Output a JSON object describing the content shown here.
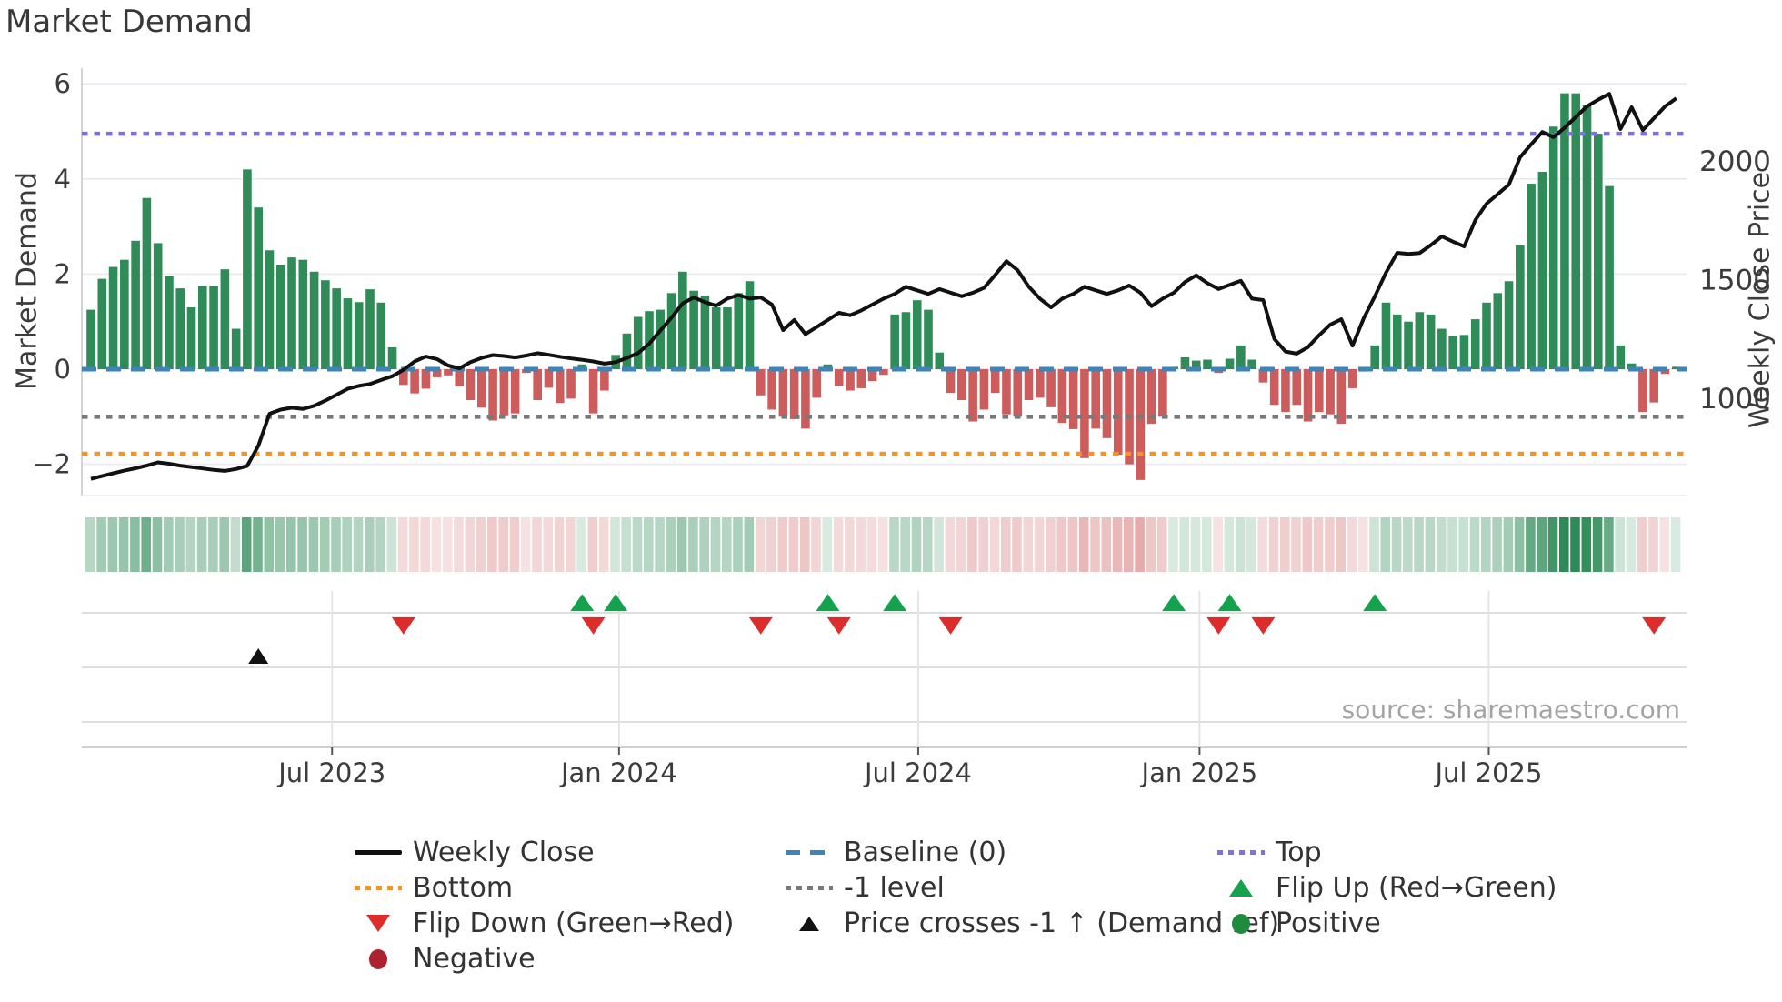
{
  "title": "Market Demand",
  "source": "source: sharemaestro.com",
  "left_axis": {
    "label": "Market Demand",
    "ticks": [
      {
        "label": "6",
        "value": 6
      },
      {
        "label": "4",
        "value": 4
      },
      {
        "label": "2",
        "value": 2
      },
      {
        "label": "0",
        "value": 0
      },
      {
        "label": "−2",
        "value": -2
      }
    ]
  },
  "right_axis": {
    "label": "Weekly Close Price",
    "ticks": [
      {
        "label": "2000",
        "value": 2000
      },
      {
        "label": "1500",
        "value": 1500
      },
      {
        "label": "1000",
        "value": 1000
      }
    ]
  },
  "x_axis": {
    "ticks": [
      {
        "label": "Jul 2023",
        "week": 21.6
      },
      {
        "label": "Jan 2024",
        "week": 47.3
      },
      {
        "label": "Jul 2024",
        "week": 74.1
      },
      {
        "label": "Jan 2025",
        "week": 99.3
      },
      {
        "label": "Jul 2025",
        "week": 125.2
      }
    ]
  },
  "colors": {
    "bar_positive": "#2f8b57",
    "bar_negative": "#cd5c5c",
    "price_line": "#111111",
    "baseline": "#3d85b8",
    "top_line": "#7f70e2",
    "bottom_line": "#f0942c",
    "minus_one_line": "#787878",
    "flip_up": "#15a24e",
    "flip_down": "#dd2c2c",
    "price_cross": "#111111",
    "positive_dot": "#1f8b3d",
    "negative_dot": "#ab2330",
    "grid": "#e9e9f2",
    "panel_grid": "#d9d9d9",
    "spine": "#c9c9c9",
    "tick_text": "#3c3c3c"
  },
  "legend": {
    "columns": [
      {
        "items": [
          {
            "label": "Weekly Close",
            "swatch": "line-black"
          },
          {
            "label": "Bottom",
            "swatch": "dotted-orange"
          },
          {
            "label": "Flip Down (Green→Red)",
            "swatch": "triangle-down-red"
          },
          {
            "label": "Negative",
            "swatch": "circle-darkred"
          }
        ]
      },
      {
        "items": [
          {
            "label": "Baseline (0)",
            "swatch": "dashed-blue"
          },
          {
            "label": "-1 level",
            "swatch": "dotted-gray"
          },
          {
            "label": "Price crosses -1 ↑ (Demand ref)",
            "swatch": "triangle-up-black"
          }
        ]
      },
      {
        "items": [
          {
            "label": "Top",
            "swatch": "dotted-purple"
          },
          {
            "label": "Flip Up (Red→Green)",
            "swatch": "triangle-up-green"
          },
          {
            "label": "Positive",
            "swatch": "circle-green"
          }
        ]
      }
    ]
  },
  "chart_data": {
    "type": "mixed",
    "subtypes": [
      "bar",
      "line",
      "heatmap",
      "event-markers"
    ],
    "x_unit": "week",
    "n_weeks": 143,
    "title": "Market Demand",
    "left_ylabel": "Market Demand",
    "right_ylabel": "Weekly Close Price",
    "left_ylim": [
      -2.68,
      6.37
    ],
    "right_axis_alignment": {
      "price_at_demand_zero": 1122.6,
      "price_per_demand_unit": 200.4
    },
    "reference_lines": {
      "baseline": 0,
      "minus_one": -1,
      "top": 4.95,
      "bottom": -1.78
    },
    "demand": [
      1.25,
      1.9,
      2.15,
      2.3,
      2.7,
      3.6,
      2.65,
      1.95,
      1.7,
      1.3,
      1.75,
      1.75,
      2.1,
      0.85,
      4.2,
      3.4,
      2.5,
      2.2,
      2.35,
      2.3,
      2.05,
      1.87,
      1.7,
      1.49,
      1.41,
      1.68,
      1.4,
      0.46,
      -0.33,
      -0.51,
      -0.41,
      -0.17,
      -0.13,
      -0.36,
      -0.65,
      -0.81,
      -1.08,
      -0.97,
      -0.93,
      -0.08,
      -0.65,
      -0.39,
      -0.71,
      -0.62,
      0.1,
      -0.93,
      -0.45,
      0.3,
      0.75,
      1.1,
      1.22,
      1.25,
      1.6,
      2.05,
      1.65,
      1.55,
      1.3,
      1.3,
      1.6,
      1.85,
      -0.55,
      -0.85,
      -1.0,
      -1.05,
      -1.25,
      -0.6,
      0.1,
      -0.35,
      -0.45,
      -0.4,
      -0.25,
      -0.12,
      1.15,
      1.2,
      1.45,
      1.25,
      0.35,
      -0.5,
      -0.65,
      -1.1,
      -0.85,
      -0.5,
      -0.95,
      -1.0,
      -0.65,
      -0.6,
      -0.8,
      -1.13,
      -1.26,
      -1.87,
      -1.25,
      -1.45,
      -1.8,
      -2.0,
      -2.33,
      -1.15,
      -1.0,
      0.05,
      0.25,
      0.18,
      0.2,
      -0.08,
      0.22,
      0.5,
      0.2,
      -0.28,
      -0.75,
      -0.9,
      -0.75,
      -1.1,
      -0.9,
      -0.95,
      -1.15,
      -0.4,
      -0.05,
      0.5,
      1.4,
      1.15,
      1.0,
      1.2,
      1.15,
      0.85,
      0.7,
      0.72,
      1.05,
      1.4,
      1.6,
      1.85,
      2.6,
      3.9,
      4.15,
      5.1,
      5.8,
      5.8,
      5.55,
      4.95,
      3.85,
      0.5,
      0.12,
      -0.9,
      -0.7,
      -0.1,
      0.05
    ],
    "weekly_close": [
      660,
      672,
      684,
      695,
      705,
      716,
      730,
      724,
      716,
      710,
      704,
      698,
      694,
      702,
      715,
      800,
      935,
      952,
      960,
      955,
      968,
      990,
      1015,
      1040,
      1052,
      1060,
      1077,
      1093,
      1120,
      1155,
      1176,
      1165,
      1138,
      1126,
      1152,
      1170,
      1182,
      1178,
      1172,
      1180,
      1190,
      1183,
      1175,
      1168,
      1162,
      1155,
      1146,
      1152,
      1170,
      1190,
      1230,
      1285,
      1340,
      1400,
      1425,
      1405,
      1390,
      1420,
      1435,
      1420,
      1425,
      1395,
      1287,
      1330,
      1270,
      1300,
      1330,
      1360,
      1350,
      1370,
      1395,
      1420,
      1440,
      1470,
      1455,
      1440,
      1460,
      1445,
      1430,
      1445,
      1465,
      1520,
      1578,
      1540,
      1470,
      1420,
      1383,
      1420,
      1440,
      1470,
      1455,
      1440,
      1455,
      1475,
      1445,
      1388,
      1420,
      1445,
      1490,
      1518,
      1485,
      1460,
      1478,
      1495,
      1420,
      1414,
      1250,
      1197,
      1188,
      1215,
      1265,
      1310,
      1333,
      1222,
      1337,
      1430,
      1530,
      1613,
      1608,
      1612,
      1645,
      1682,
      1660,
      1640,
      1751,
      1820,
      1860,
      1900,
      2015,
      2070,
      2122,
      2100,
      2140,
      2185,
      2230,
      2258,
      2283,
      2134,
      2226,
      2130,
      2180,
      2230,
      2264
    ],
    "markers": {
      "flip_up_weeks": [
        44,
        47,
        66,
        72,
        97,
        102,
        115
      ],
      "flip_down_weeks": [
        28,
        45,
        60,
        67,
        77,
        101,
        105,
        140
      ],
      "price_cross_up_weeks": [
        15
      ]
    },
    "heatmap_rule": "one cell per week: green when demand >= 0, red when demand < 0, shade intensity proportional to |demand|",
    "legend_entries": [
      "Weekly Close",
      "Baseline (0)",
      "Top",
      "Bottom",
      "-1 level",
      "Flip Up (Red→Green)",
      "Flip Down (Green→Red)",
      "Price crosses -1 ↑ (Demand ref)",
      "Positive",
      "Negative"
    ],
    "grid": true,
    "legend_position": "bottom"
  }
}
